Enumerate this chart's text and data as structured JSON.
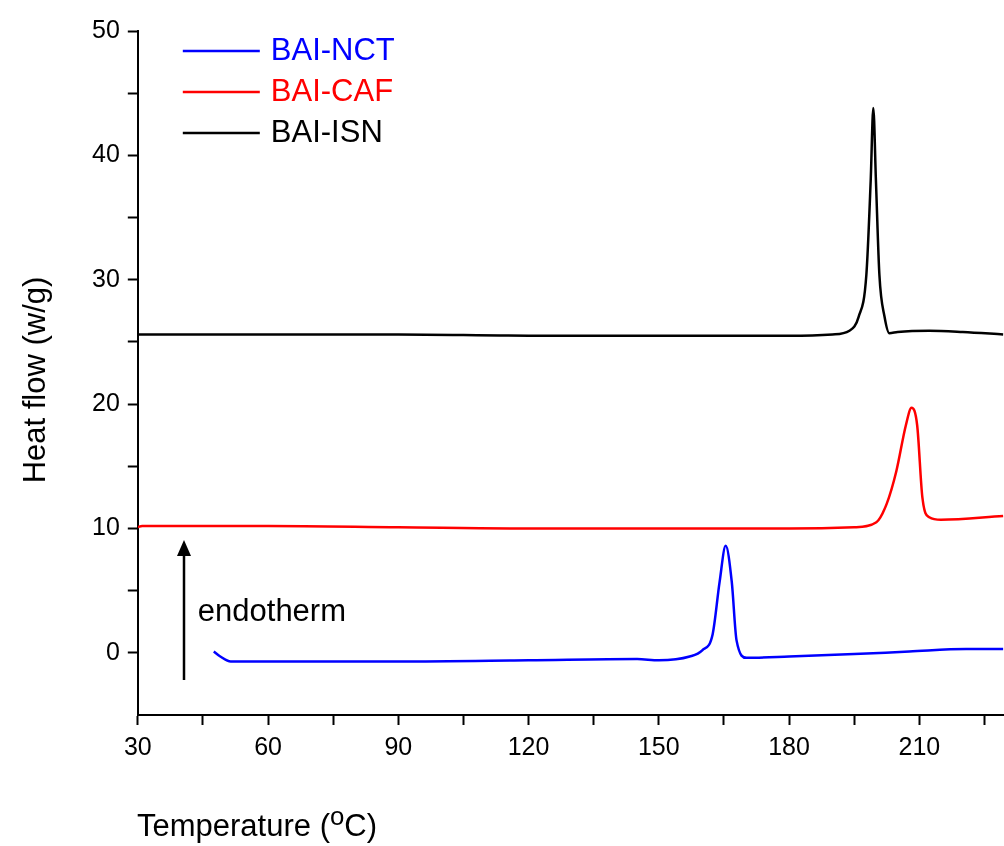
{
  "chart_data": {
    "type": "line",
    "xlabel": "Temperature ($^{o}$C)",
    "ylabel": "Heat flow (w/g)",
    "xlim": [
      30,
      229.5
    ],
    "xticks": [
      30,
      {
        "value": 45,
        "label": null
      },
      60,
      {
        "value": 75,
        "label": null
      },
      90,
      {
        "value": 105,
        "label": null
      },
      120,
      {
        "value": 135,
        "label": null
      },
      150,
      {
        "value": 165,
        "label": null
      },
      180,
      {
        "value": 195,
        "label": null
      },
      210,
      {
        "value": 225,
        "label": null
      }
    ],
    "ylim": [
      -5,
      50
    ],
    "yticks": [
      0,
      {
        "value": 5,
        "label": null
      },
      10,
      {
        "value": 15,
        "label": null
      },
      20,
      {
        "value": 25,
        "label": null
      },
      30,
      {
        "value": 35,
        "label": null
      },
      40,
      {
        "value": 45,
        "label": null
      },
      50
    ],
    "grid": false,
    "legend": "top left",
    "marker": "none",
    "line_style": "solid",
    "annotations": [
      "endotherm"
    ],
    "series": [
      {
        "name": "BAI-NCT",
        "color": "#0000ff",
        "x": [
          47.5,
          49,
          51.4,
          60,
          90,
          120,
          145,
          150,
          157.1,
          160,
          162.4,
          164,
          165.4,
          166.8,
          167.9,
          170.2,
          180,
          195,
          207.7,
          220.8,
          229.3
        ],
        "values": [
          0.1,
          -0.3,
          -0.7,
          -0.7,
          -0.7,
          -0.6,
          -0.5,
          -0.6,
          -0.3,
          0.2,
          1.5,
          5.7,
          8.6,
          5.7,
          1,
          -0.4,
          -0.3,
          -0.1,
          0.1,
          0.3,
          0.3
        ]
      },
      {
        "name": "BAI-CAF",
        "color": "#ff0000",
        "x": [
          30,
          31,
          60,
          90,
          120,
          150,
          180,
          195,
          200.1,
          202.5,
          204.7,
          206.9,
          208.2,
          209.5,
          210.7,
          212.3,
          215,
          229.3
        ],
        "values": [
          10.1,
          10.2,
          10.2,
          10.1,
          10,
          10,
          10,
          10.1,
          10.5,
          12,
          14.6,
          18.3,
          19.7,
          18.3,
          12.5,
          10.9,
          10.7,
          11
        ],
        "line_style": "solid"
      },
      {
        "name": "BAI-ISN",
        "color": "#000000",
        "x": [
          30,
          60,
          90,
          120,
          150,
          180,
          190,
          193.9,
          196,
          197.8,
          198.8,
          199.4,
          200,
          200.8,
          202,
          203.1,
          205,
          212.3,
          220,
          229.3
        ],
        "values": [
          25.6,
          25.6,
          25.6,
          25.5,
          25.5,
          25.5,
          25.6,
          25.9,
          27,
          30.4,
          38,
          43.8,
          38,
          30.4,
          27,
          25.7,
          25.8,
          25.9,
          25.8,
          25.6
        ]
      }
    ]
  }
}
